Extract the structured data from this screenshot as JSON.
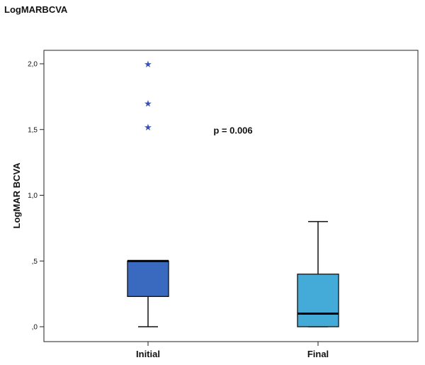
{
  "page_title": "LogMARBCVA",
  "chart_data": {
    "type": "box",
    "title": "",
    "ylabel": "LogMAR BCVA",
    "xlabel": "",
    "ylim": [
      -0.05,
      2.2
    ],
    "yticks": [
      0.0,
      0.5,
      1.0,
      1.5,
      2.0
    ],
    "ytick_labels": [
      ",0",
      ",5",
      "1,0",
      "1,5",
      "2,0"
    ],
    "grid": false,
    "categories": [
      "Initial",
      "Final"
    ],
    "boxes": [
      {
        "category": "Initial",
        "whisker_low": 0.0,
        "q1": 0.23,
        "median": 0.5,
        "q3": 0.5,
        "whisker_high": 0.5,
        "outliers": [
          1.52,
          1.7,
          2.0
        ],
        "color": "#3a6abf"
      },
      {
        "category": "Final",
        "whisker_low": 0.0,
        "q1": 0.0,
        "median": 0.1,
        "q3": 0.4,
        "whisker_high": 0.8,
        "outliers": [],
        "color": "#44aad8"
      }
    ],
    "annotations": [
      {
        "text": "p = 0.006",
        "x": 1.5,
        "y": 1.49
      }
    ],
    "outlier_marker_color": "#3a50b8"
  }
}
